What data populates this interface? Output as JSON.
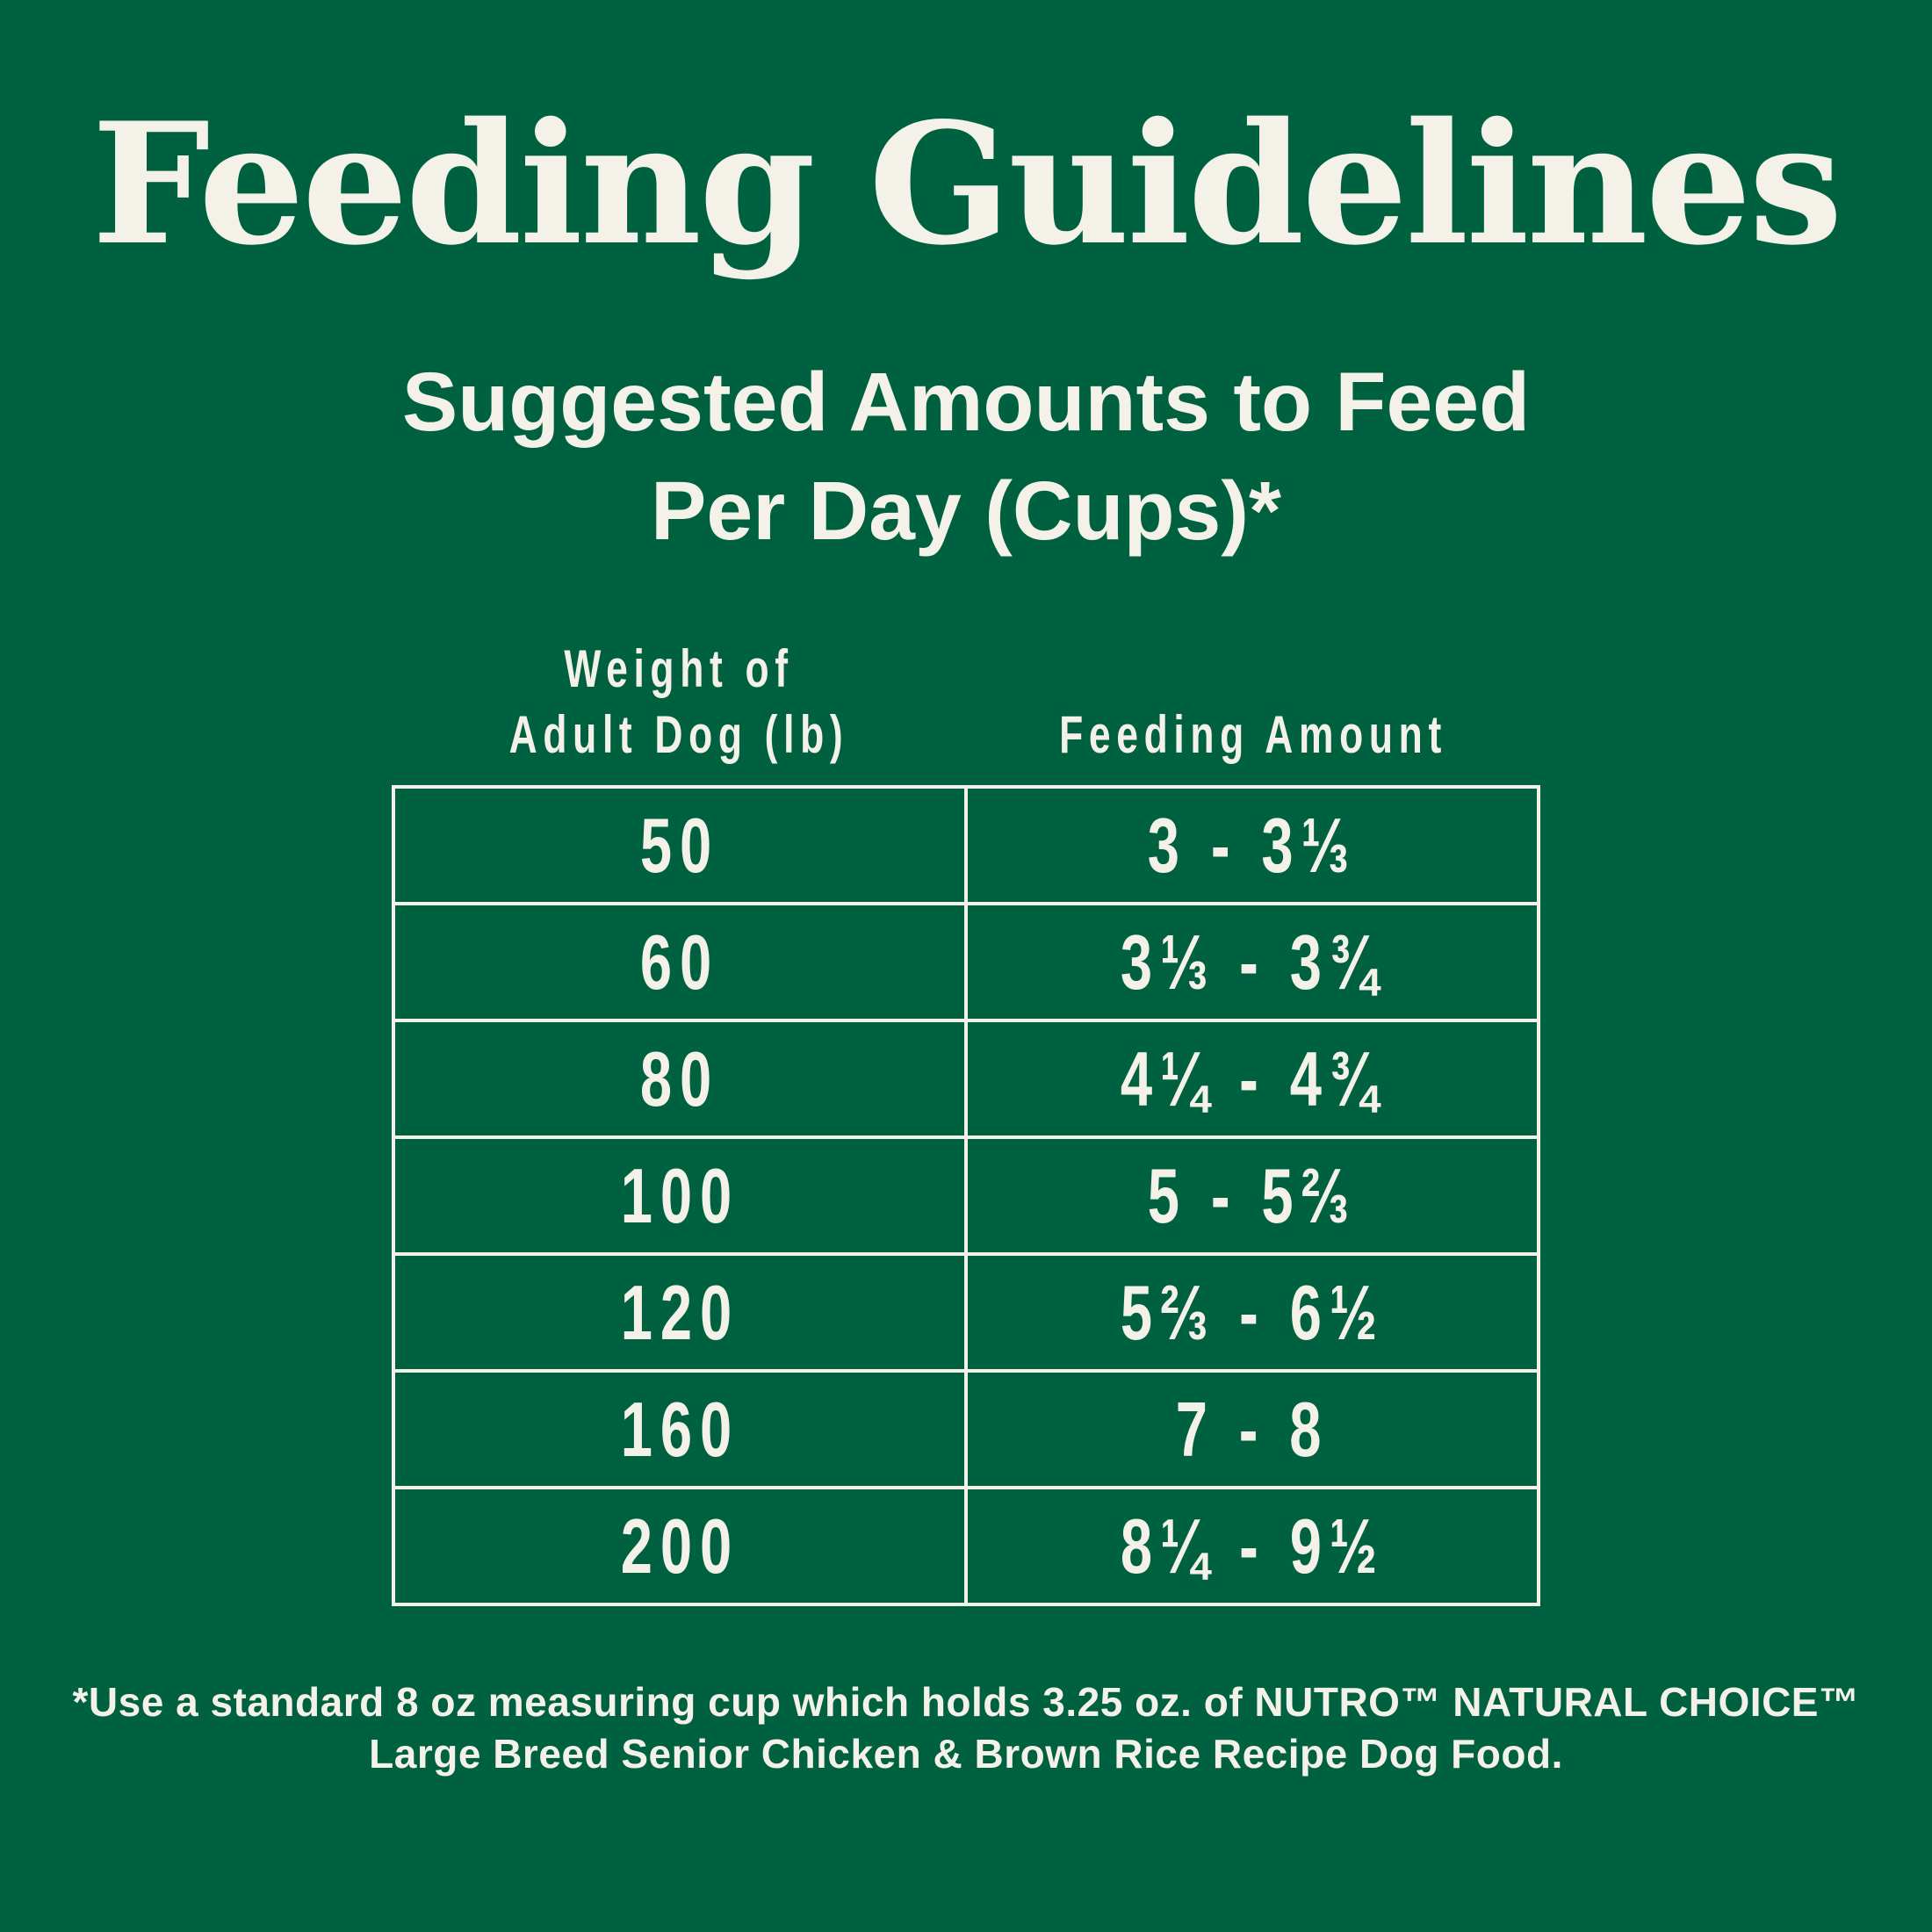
{
  "colors": {
    "background": "#006140",
    "foreground": "#F3F1E8"
  },
  "title": "Feeding Guidelines",
  "subtitle": {
    "line1": "Suggested Amounts to Feed",
    "line2": "Per Day (Cups)*"
  },
  "chart_data": {
    "type": "table",
    "title": "Feeding Guidelines",
    "subtitle": "Suggested Amounts to Feed Per Day (Cups)*",
    "columns": [
      "Weight of Adult Dog (lb)",
      "Feeding Amount"
    ],
    "header_display": {
      "col1_line1": "Weight of",
      "col1_line2": "Adult Dog (lb)",
      "col2": "Feeding Amount"
    },
    "rows": [
      {
        "weight": "50",
        "amount": "3 - 3⅓"
      },
      {
        "weight": "60",
        "amount": "3⅓ - 3¾"
      },
      {
        "weight": "80",
        "amount": "4¼ - 4¾"
      },
      {
        "weight": "100",
        "amount": "5 - 5⅔"
      },
      {
        "weight": "120",
        "amount": "5⅔ - 6½"
      },
      {
        "weight": "160",
        "amount": "7 - 8"
      },
      {
        "weight": "200",
        "amount": "8¼ - 9½"
      }
    ]
  },
  "footnote": {
    "line1": "*Use a standard 8 oz measuring cup which holds 3.25 oz. of NUTRO™ NATURAL CHOICE™",
    "line2": "Large Breed Senior Chicken & Brown Rice Recipe Dog Food."
  }
}
